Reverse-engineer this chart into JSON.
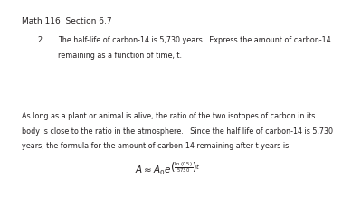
{
  "title": "Math 116  Section 6.7",
  "prob_num": "2.",
  "prob_line1": "The half-life of carbon-14 is 5,730 years.  Express the amount of carbon-14",
  "prob_line2": "remaining as a function of time, t.",
  "body_line1": "As long as a plant or animal is alive, the ratio of the two isotopes of carbon in its",
  "body_line2": "body is close to the ratio in the atmosphere.   Since the half life of carbon-14 is 5,730",
  "body_line3": "years, the formula for the amount of carbon-14 remaining after t years is",
  "background_color": "#ffffff",
  "text_color": "#231f20",
  "title_fontsize": 6.5,
  "body_fontsize": 5.8,
  "formula_fontsize": 7.5
}
